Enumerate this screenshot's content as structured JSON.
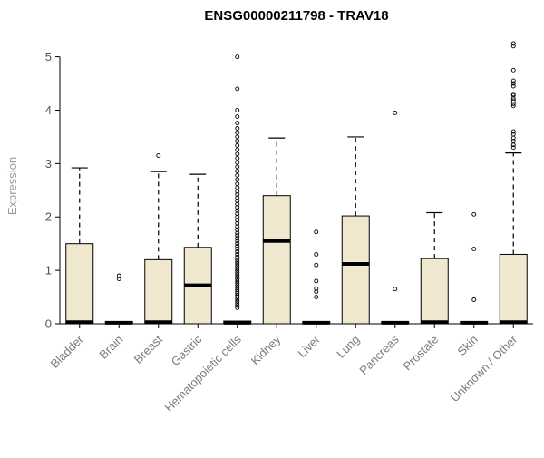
{
  "title": "ENSG00000211798 - TRAV18",
  "chart_data": {
    "type": "boxplot",
    "title": "ENSG00000211798 - TRAV18",
    "xlabel": "",
    "ylabel": "Expression",
    "ylim": [
      0,
      5.35
    ],
    "yticks": [
      0,
      1,
      2,
      3,
      4,
      5
    ],
    "grid": false,
    "legend": "none",
    "box_fill": "#F0E8CE",
    "box_stroke": "#000000",
    "axis_color": "#000000",
    "tick_label_color": "#7a7a7a",
    "categories": [
      "Bladder",
      "Brain",
      "Breast",
      "Gastric",
      "Hematopoietic cells",
      "Kidney",
      "Liver",
      "Lung",
      "Pancreas",
      "Prostate",
      "Skin",
      "Unknown / Other"
    ],
    "series": [
      {
        "category": "Bladder",
        "low": 0,
        "q1": 0,
        "median": 0.03,
        "q3": 1.5,
        "high": 2.92,
        "outliers": []
      },
      {
        "category": "Brain",
        "low": 0,
        "q1": 0,
        "median": 0.02,
        "q3": 0.04,
        "high": 0.05,
        "outliers": [
          0.84,
          0.9
        ]
      },
      {
        "category": "Breast",
        "low": 0,
        "q1": 0,
        "median": 0.03,
        "q3": 1.2,
        "high": 2.85,
        "outliers": [
          3.15
        ]
      },
      {
        "category": "Gastric",
        "low": 0,
        "q1": 0,
        "median": 0.72,
        "q3": 1.43,
        "high": 2.8,
        "outliers": []
      },
      {
        "category": "Hematopoietic cells",
        "low": 0,
        "q1": 0,
        "median": 0.02,
        "q3": 0.05,
        "high": 0.08,
        "outliers": [
          0.3,
          0.34,
          0.38,
          0.42,
          0.46,
          0.5,
          0.53,
          0.57,
          0.6,
          0.64,
          0.68,
          0.72,
          0.76,
          0.8,
          0.84,
          0.88,
          0.92,
          0.96,
          1.0,
          1.04,
          1.08,
          1.12,
          1.16,
          1.2,
          1.25,
          1.3,
          1.35,
          1.4,
          1.45,
          1.5,
          1.55,
          1.6,
          1.65,
          1.7,
          1.76,
          1.82,
          1.88,
          1.94,
          2.0,
          2.06,
          2.12,
          2.18,
          2.24,
          2.3,
          2.36,
          2.42,
          2.48,
          2.55,
          2.62,
          2.7,
          2.78,
          2.86,
          2.94,
          3.02,
          3.1,
          3.18,
          3.26,
          3.34,
          3.42,
          3.5,
          3.58,
          3.66,
          3.76,
          3.88,
          4.0,
          4.4,
          5.0
        ]
      },
      {
        "category": "Kidney",
        "low": 0,
        "q1": 0,
        "median": 1.55,
        "q3": 2.4,
        "high": 3.48,
        "outliers": []
      },
      {
        "category": "Liver",
        "low": 0,
        "q1": 0,
        "median": 0.02,
        "q3": 0.04,
        "high": 0.05,
        "outliers": [
          0.5,
          0.6,
          0.66,
          0.8,
          1.1,
          1.3,
          1.72
        ]
      },
      {
        "category": "Lung",
        "low": 0,
        "q1": 0,
        "median": 1.12,
        "q3": 2.02,
        "high": 3.5,
        "outliers": []
      },
      {
        "category": "Pancreas",
        "low": 0,
        "q1": 0,
        "median": 0.02,
        "q3": 0.04,
        "high": 0.05,
        "outliers": [
          0.65,
          3.95
        ]
      },
      {
        "category": "Prostate",
        "low": 0,
        "q1": 0,
        "median": 0.03,
        "q3": 1.22,
        "high": 2.08,
        "outliers": []
      },
      {
        "category": "Skin",
        "low": 0,
        "q1": 0,
        "median": 0.02,
        "q3": 0.04,
        "high": 0.05,
        "outliers": [
          0.45,
          1.4,
          2.05
        ]
      },
      {
        "category": "Unknown / Other",
        "low": 0,
        "q1": 0,
        "median": 0.03,
        "q3": 1.3,
        "high": 3.2,
        "outliers": [
          3.3,
          3.35,
          3.42,
          3.48,
          3.55,
          3.6,
          4.08,
          4.12,
          4.18,
          4.22,
          4.28,
          4.3,
          4.45,
          4.5,
          4.55,
          4.75,
          5.2,
          5.25
        ]
      }
    ]
  }
}
